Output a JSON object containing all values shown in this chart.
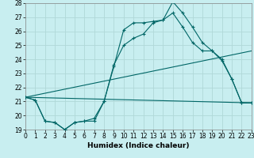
{
  "xlabel": "Humidex (Indice chaleur)",
  "bg_color": "#c8eef0",
  "grid_color": "#b0d8d8",
  "line_color": "#006666",
  "ylim": [
    19,
    28
  ],
  "xlim": [
    0,
    23
  ],
  "yticks": [
    19,
    20,
    21,
    22,
    23,
    24,
    25,
    26,
    27,
    28
  ],
  "xticks": [
    0,
    1,
    2,
    3,
    4,
    5,
    6,
    7,
    8,
    9,
    10,
    11,
    12,
    13,
    14,
    15,
    16,
    17,
    18,
    19,
    20,
    21,
    22,
    23
  ],
  "line1_x": [
    0,
    1,
    2,
    3,
    4,
    5,
    6,
    7,
    8,
    9,
    10,
    11,
    12,
    13,
    14,
    15,
    16,
    17,
    18,
    19,
    20,
    21,
    22,
    23
  ],
  "line1_y": [
    21.3,
    21.1,
    19.6,
    19.5,
    19.0,
    19.5,
    19.6,
    19.6,
    21.0,
    23.5,
    26.1,
    26.6,
    26.6,
    26.7,
    26.8,
    28.1,
    27.3,
    26.3,
    25.2,
    24.6,
    24.0,
    22.6,
    20.9,
    20.9
  ],
  "line2_x": [
    0,
    1,
    2,
    3,
    4,
    5,
    6,
    7,
    8,
    9,
    10,
    11,
    12,
    13,
    14,
    15,
    16,
    17,
    18,
    19,
    20,
    21,
    22,
    23
  ],
  "line2_y": [
    21.3,
    21.1,
    19.6,
    19.5,
    19.0,
    19.5,
    19.6,
    19.8,
    21.0,
    23.6,
    25.0,
    25.5,
    25.8,
    26.6,
    26.8,
    27.3,
    26.3,
    25.2,
    24.6,
    24.6,
    23.9,
    22.6,
    20.9,
    20.9
  ],
  "line3_x": [
    0,
    23
  ],
  "line3_y": [
    21.3,
    24.6
  ],
  "line4_x": [
    0,
    23
  ],
  "line4_y": [
    21.3,
    20.9
  ]
}
